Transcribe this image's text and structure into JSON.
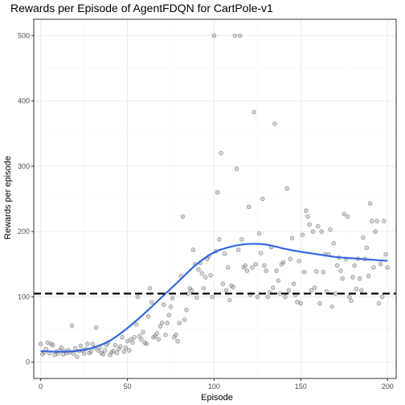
{
  "chart_data": {
    "type": "scatter",
    "title": "Rewards per Episode of AgentFDQN for CartPole-v1",
    "xlabel": "Episode",
    "ylabel": "Rewards per episode",
    "xlim": [
      -4,
      205
    ],
    "ylim": [
      -25,
      525
    ],
    "x_ticks": [
      0,
      50,
      100,
      150,
      200
    ],
    "y_ticks": [
      0,
      100,
      200,
      300,
      400,
      500
    ],
    "grid": true,
    "legend": "none",
    "colors": {
      "points": "#888888",
      "smooth": "#3366e6",
      "threshold": "#000000",
      "panel_border": "#333333",
      "grid": "#ebebeb"
    },
    "threshold": {
      "y": 105,
      "style": "dashed"
    },
    "series": [
      {
        "kind": "points",
        "x": [
          0,
          1,
          2,
          3,
          4,
          5,
          6,
          7,
          8,
          9,
          10,
          11,
          12,
          13,
          14,
          15,
          16,
          17,
          18,
          19,
          20,
          21,
          22,
          23,
          24,
          25,
          26,
          27,
          28,
          29,
          30,
          31,
          32,
          33,
          34,
          35,
          36,
          37,
          38,
          39,
          40,
          41,
          42,
          43,
          44,
          45,
          46,
          47,
          48,
          49,
          50,
          51,
          52,
          53,
          54,
          55,
          56,
          57,
          58,
          59,
          60,
          61,
          62,
          63,
          64,
          65,
          66,
          67,
          68,
          69,
          70,
          71,
          72,
          73,
          74,
          75,
          76,
          77,
          78,
          79,
          80,
          81,
          82,
          83,
          84,
          85,
          86,
          87,
          88,
          89,
          90,
          91,
          92,
          93,
          94,
          95,
          96,
          97,
          98,
          99,
          100,
          101,
          102,
          103,
          104,
          105,
          106,
          107,
          108,
          109,
          110,
          111,
          112,
          113,
          114,
          115,
          116,
          117,
          118,
          119,
          120,
          121,
          122,
          123,
          124,
          125,
          126,
          127,
          128,
          129,
          130,
          131,
          132,
          133,
          134,
          135,
          136,
          137,
          138,
          139,
          140,
          141,
          142,
          143,
          144,
          145,
          146,
          147,
          148,
          149,
          150,
          151,
          152,
          153,
          154,
          155,
          156,
          157,
          158,
          159,
          160,
          161,
          162,
          163,
          164,
          165,
          166,
          167,
          168,
          169,
          170,
          171,
          172,
          173,
          174,
          175,
          176,
          177,
          178,
          179,
          180,
          181,
          182,
          183,
          184,
          185,
          186,
          187,
          188,
          189,
          190,
          191,
          192,
          193,
          194,
          195,
          196,
          197,
          198,
          199,
          200
        ],
        "y": [
          28,
          12,
          15,
          20,
          30,
          14,
          28,
          26,
          11,
          16,
          13,
          18,
          22,
          12,
          17,
          14,
          18,
          15,
          56,
          13,
          21,
          8,
          17,
          25,
          18,
          13,
          20,
          28,
          14,
          16,
          28,
          22,
          53,
          18,
          22,
          14,
          12,
          18,
          26,
          30,
          11,
          15,
          17,
          26,
          14,
          20,
          24,
          38,
          16,
          22,
          32,
          18,
          35,
          30,
          38,
          58,
          100,
          40,
          35,
          46,
          30,
          28,
          70,
          113,
          92,
          38,
          40,
          44,
          35,
          55,
          60,
          88,
          42,
          60,
          72,
          85,
          98,
          38,
          42,
          32,
          60,
          132,
          223,
          65,
          80,
          105,
          113,
          110,
          172,
          150,
          99,
          142,
          152,
          136,
          113,
          130,
          158,
          162,
          133,
          100,
          500,
          170,
          260,
          188,
          320,
          120,
          166,
          110,
          145,
          95,
          117,
          115,
          500,
          296,
          172,
          500,
          188,
          145,
          148,
          140,
          238,
          103,
          145,
          383,
          150,
          100,
          197,
          167,
          250,
          148,
          140,
          100,
          107,
          176,
          114,
          365,
          140,
          125,
          105,
          150,
          153,
          100,
          266,
          110,
          158,
          190,
          120,
          103,
          92,
          155,
          90,
          195,
          138,
          232,
          223,
          211,
          110,
          200,
          114,
          139,
          208,
          90,
          200,
          138,
          165,
          108,
          165,
          203,
          85,
          182,
          105,
          148,
          160,
          140,
          128,
          227,
          158,
          223,
          100,
          94,
          130,
          148,
          112,
          158,
          128,
          110,
          191,
          158,
          175,
          132,
          243,
          216,
          145,
          200,
          216,
          90,
          150,
          100,
          216,
          165,
          145
        ]
      },
      {
        "kind": "smooth",
        "x": [
          0,
          10,
          20,
          30,
          40,
          50,
          60,
          70,
          80,
          90,
          100,
          110,
          120,
          130,
          140,
          150,
          160,
          170,
          180,
          190,
          200
        ],
        "y": [
          17,
          16,
          17,
          22,
          33,
          52,
          75,
          100,
          125,
          150,
          168,
          177,
          181,
          180,
          174,
          169,
          165,
          161,
          159,
          157,
          155
        ]
      }
    ]
  }
}
